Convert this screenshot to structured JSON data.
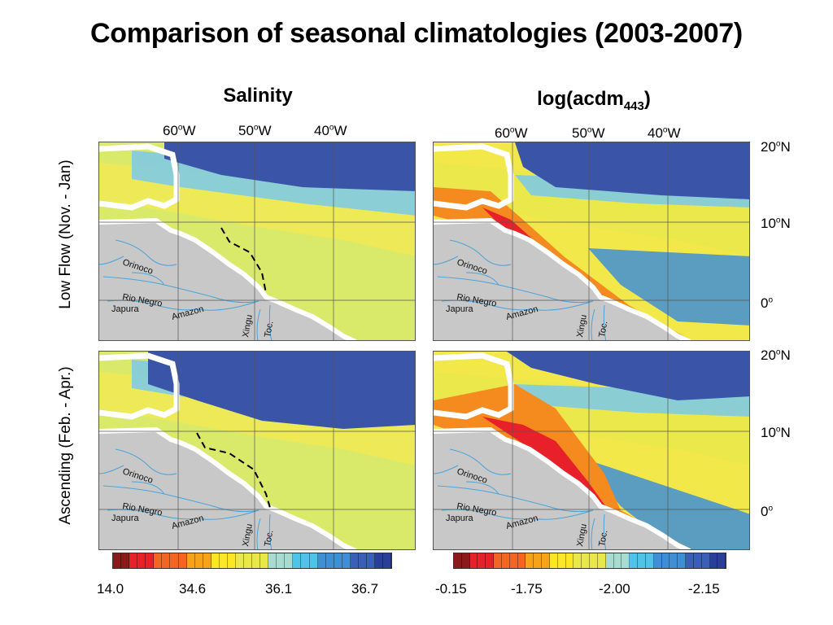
{
  "title": "Comparison of seasonal climatologies (2003-2007)",
  "columns": {
    "left": {
      "label": "Salinity"
    },
    "right": {
      "label": "log(acdm",
      "sub": "443",
      "suffix": ")"
    }
  },
  "rows": [
    {
      "label": "Low Flow (Nov. - Jan)"
    },
    {
      "label": "Ascending (Feb. - Apr.)"
    }
  ],
  "longitudes": [
    {
      "value": "60",
      "deg": "o",
      "dir": "W"
    },
    {
      "value": "50",
      "deg": "o",
      "dir": "W"
    },
    {
      "value": "40",
      "deg": "o",
      "dir": "W"
    }
  ],
  "latitudes": [
    {
      "value": "20",
      "deg": "o",
      "dir": "N"
    },
    {
      "value": "10",
      "deg": "o",
      "dir": "N"
    },
    {
      "value": "0",
      "deg": "o",
      "dir": ""
    }
  ],
  "rivers": [
    "Orinoco",
    "Rio Negro",
    "Japura",
    "Amazon",
    "Xingu",
    "Toc."
  ],
  "colorbars": {
    "left": {
      "ticks": [
        "14.0",
        "34.6",
        "36.1",
        "36.7"
      ],
      "colors": [
        "#8b1a1a",
        "#e8202a",
        "#f26522",
        "#f7a21b",
        "#fde724",
        "#e8e84a",
        "#a9dcd0",
        "#4fc3e8",
        "#3f8fd6",
        "#3a5fb8",
        "#2a3f9a"
      ]
    },
    "right": {
      "ticks": [
        "-0.15",
        "-1.75",
        "-2.00",
        "-2.15"
      ],
      "colors": [
        "#8b1a1a",
        "#e8202a",
        "#f26522",
        "#f7a21b",
        "#fde724",
        "#e8e84a",
        "#a9dcd0",
        "#4fc3e8",
        "#3f8fd6",
        "#3a5fb8",
        "#2a3f9a"
      ]
    }
  },
  "palette": {
    "land": "#c8c8c8",
    "coast": "#ffffff",
    "river": "#4aa3d8",
    "deep_blue": "#3a55a8",
    "yellow": "#f2e84a",
    "red": "#e8202a",
    "orange": "#f58a1f"
  }
}
